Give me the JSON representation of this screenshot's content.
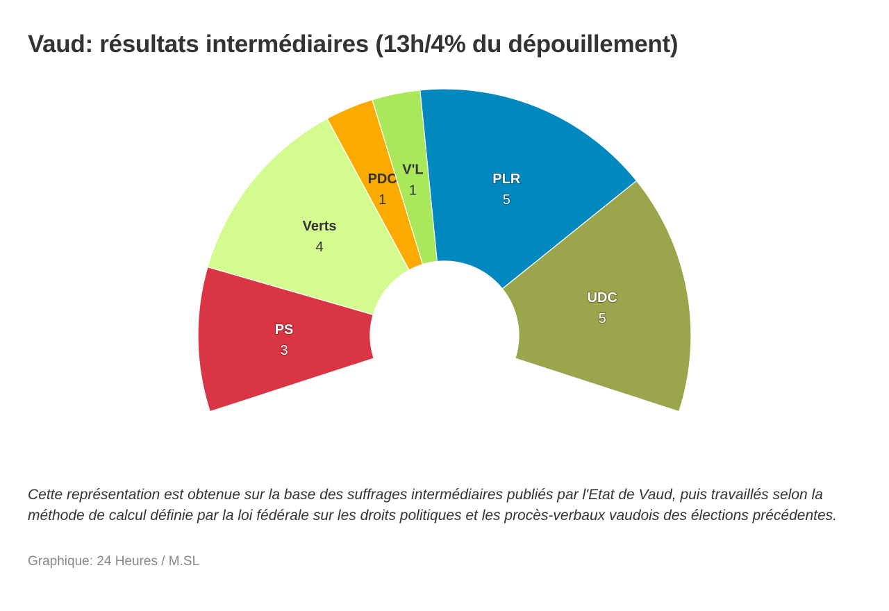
{
  "title": "Vaud: résultats intermédiaires (13h/4% du dépouillement)",
  "note": "Cette représentation est obtenue sur la base des suffrages intermédiaires publiés par l'Etat de Vaud, puis travaillés selon la méthode de calcul définie par la loi fédérale sur les droits politiques et les procès-verbaux vaudois des élections précédentes.",
  "credit": "Graphique: 24 Heures / M.SL",
  "chart_data": {
    "type": "pie",
    "variant": "parliament-semicircle",
    "title": "Vaud: résultats intermédiaires (13h/4% du dépouillement)",
    "total_seats": 19,
    "categories": [
      "PS",
      "Verts",
      "PDC",
      "V'L",
      "PLR",
      "UDC"
    ],
    "values": [
      3,
      4,
      1,
      1,
      5,
      5
    ],
    "colors": [
      "#d93545",
      "#d3fb90",
      "#fbaa00",
      "#a8e85a",
      "#0088bf",
      "#9aa54c"
    ],
    "label_colors": [
      "#ffffff",
      "#333333",
      "#333333",
      "#333333",
      "#ffffff",
      "#ffffff"
    ]
  }
}
